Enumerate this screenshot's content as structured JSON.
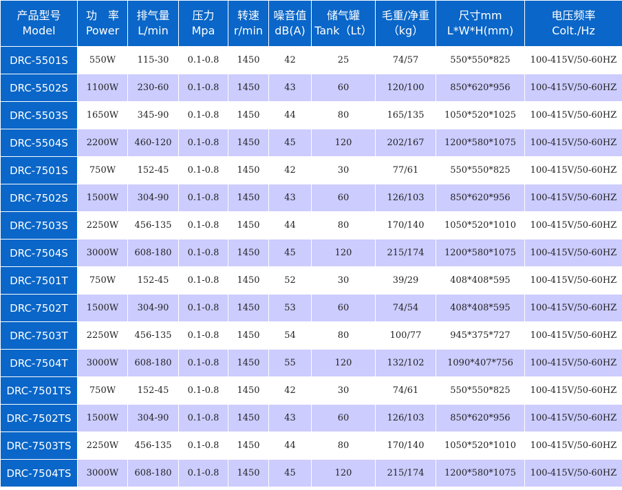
{
  "headers": [
    [
      "产品型号",
      "Model"
    ],
    [
      "功　率",
      "Power"
    ],
    [
      "排气量",
      "L/min"
    ],
    [
      "压力",
      "Mpa"
    ],
    [
      "转速",
      "r/min"
    ],
    [
      "噪音值",
      "dB(A)"
    ],
    [
      "储气罐",
      "Tank（Lt）"
    ],
    [
      "毛重/净重",
      "（kg）"
    ],
    [
      "尺寸mm",
      "L*W*H(mm)"
    ],
    [
      "电压频率",
      "Colt./Hz"
    ]
  ],
  "rows": [
    [
      "DRC-5501S",
      "550W",
      "115-30",
      "0.1-0.8",
      "1450",
      "42",
      "25",
      "74/57",
      "550*550*825",
      "100-415V/50-60HZ"
    ],
    [
      "DRC-5502S",
      "1100W",
      "230-60",
      "0.1-0.8",
      "1450",
      "43",
      "60",
      "120/100",
      "850*620*956",
      "100-415V/50-60HZ"
    ],
    [
      "DRC-5503S",
      "1650W",
      "345-90",
      "0.1-0.8",
      "1450",
      "44",
      "80",
      "165/135",
      "1050*520*1025",
      "100-415V/50-60HZ"
    ],
    [
      "DRC-5504S",
      "2200W",
      "460-120",
      "0.1-0.8",
      "1450",
      "45",
      "120",
      "202/167",
      "1200*580*1075",
      "100-415V/50-60HZ"
    ],
    [
      "DRC-7501S",
      "750W",
      "152-45",
      "0.1-0.8",
      "1450",
      "42",
      "30",
      "77/61",
      "550*550*825",
      "100-415V/50-60HZ"
    ],
    [
      "DRC-7502S",
      "1500W",
      "304-90",
      "0.1-0.8",
      "1450",
      "43",
      "60",
      "126/103",
      "850*620*956",
      "100-415V/50-60HZ"
    ],
    [
      "DRC-7503S",
      "2250W",
      "456-135",
      "0.1-0.8",
      "1450",
      "44",
      "80",
      "170/140",
      "1050*520*1010",
      "100-415V/50-60HZ"
    ],
    [
      "DRC-7504S",
      "3000W",
      "608-180",
      "0.1-0.8",
      "1450",
      "45",
      "120",
      "215/174",
      "1200*580*1075",
      "100-415V/50-60HZ"
    ],
    [
      "DRC-7501T",
      "750W",
      "152-45",
      "0.1-0.8",
      "1450",
      "52",
      "30",
      "39/29",
      "408*408*595",
      "100-415V/50-60HZ"
    ],
    [
      "DRC-7502T",
      "1500W",
      "304-90",
      "0.1-0.8",
      "1450",
      "53",
      "60",
      "74/54",
      "408*408*595",
      "100-415V/50-60HZ"
    ],
    [
      "DRC-7503T",
      "2250W",
      "456-135",
      "0.1-0.8",
      "1450",
      "54",
      "80",
      "100/77",
      "945*375*727",
      "100-415V/50-60HZ"
    ],
    [
      "DRC-7504T",
      "3000W",
      "608-180",
      "0.1-0.8",
      "1450",
      "55",
      "120",
      "132/102",
      "1090*407*756",
      "100-415V/50-60HZ"
    ],
    [
      "DRC-7501TS",
      "750W",
      "152-45",
      "0.1-0.8",
      "1450",
      "42",
      "30",
      "74/61",
      "550*550*825",
      "100-415V/50-60HZ"
    ],
    [
      "DRC-7502TS",
      "1500W",
      "304-90",
      "0.1-0.8",
      "1450",
      "43",
      "60",
      "126/103",
      "850*620*956",
      "100-415V/50-60HZ"
    ],
    [
      "DRC-7503TS",
      "2250W",
      "456-135",
      "0.1-0.8",
      "1450",
      "44",
      "80",
      "170/140",
      "1050*520*1010",
      "100-415V/50-60HZ"
    ],
    [
      "DRC-7504TS",
      "3000W",
      "608-180",
      "0.1-0.8",
      "1450",
      "45",
      "120",
      "215/174",
      "1200*580*1075",
      "100-415V/50-60HZ"
    ]
  ],
  "colors": {
    "header": "#0a66c8",
    "alt_row": "#ccccff"
  }
}
